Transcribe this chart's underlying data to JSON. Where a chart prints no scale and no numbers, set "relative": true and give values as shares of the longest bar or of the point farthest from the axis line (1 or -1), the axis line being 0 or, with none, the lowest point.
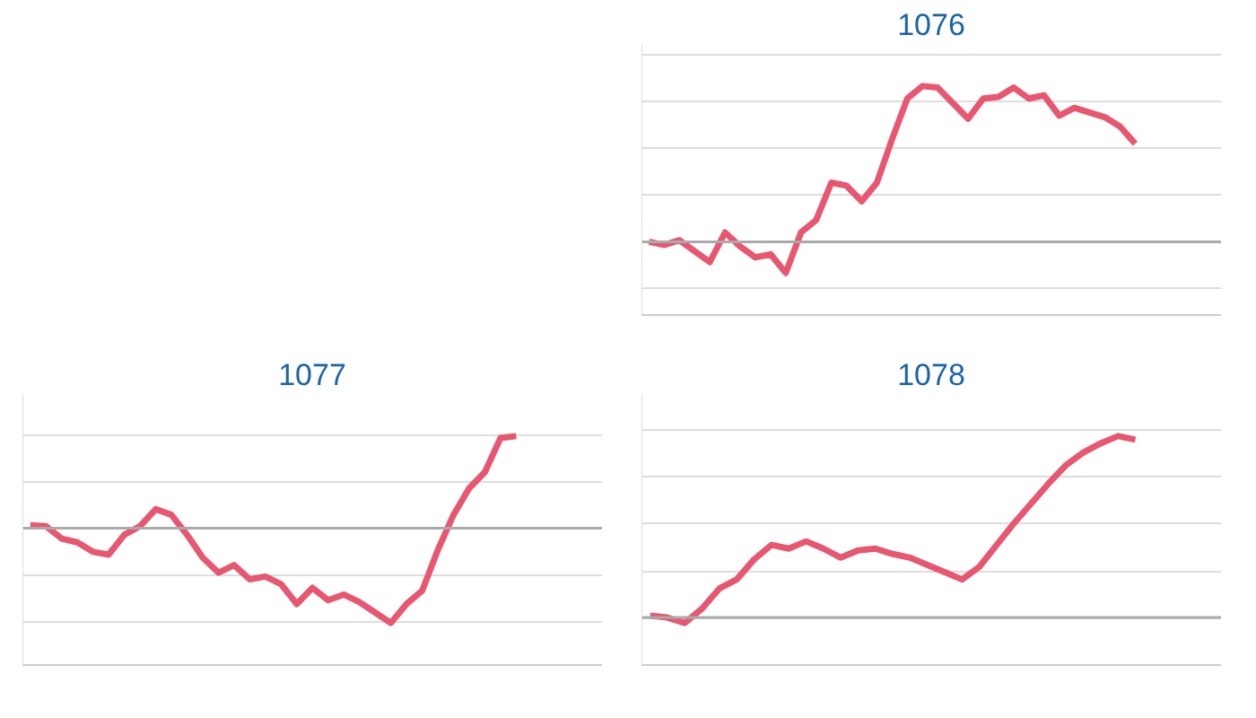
{
  "chart_data": [
    {
      "type": "line",
      "title": "1076",
      "relative": true,
      "grid": "y",
      "color": "#e8566f",
      "categories": [
        null,
        null,
        null,
        null,
        null,
        null,
        null,
        null,
        null,
        null,
        null,
        null,
        null,
        null,
        null,
        null,
        null,
        null,
        null,
        null,
        null,
        null,
        null,
        null,
        null,
        null,
        null,
        null,
        null,
        null,
        null,
        null,
        null
      ],
      "values": [
        0,
        -0.02,
        0.01,
        -0.06,
        -0.13,
        0.06,
        -0.03,
        -0.1,
        -0.08,
        -0.2,
        0.06,
        0.14,
        0.38,
        0.36,
        0.26,
        0.38,
        0.66,
        0.92,
        1.0,
        0.99,
        0.89,
        0.79,
        0.92,
        0.93,
        0.99,
        0.92,
        0.94,
        0.81,
        0.86,
        0.83,
        0.8,
        0.74,
        0.63
      ]
    },
    {
      "type": "line",
      "title": "1077",
      "relative": true,
      "grid": "y",
      "color": "#e8566f",
      "categories": [
        null,
        null,
        null,
        null,
        null,
        null,
        null,
        null,
        null,
        null,
        null,
        null,
        null,
        null,
        null,
        null,
        null,
        null,
        null,
        null,
        null,
        null,
        null,
        null,
        null,
        null,
        null,
        null,
        null,
        null,
        null,
        null
      ],
      "values": [
        0.03,
        0.02,
        -0.11,
        -0.15,
        -0.25,
        -0.28,
        -0.07,
        0.02,
        0.2,
        0.14,
        -0.07,
        -0.31,
        -0.47,
        -0.39,
        -0.54,
        -0.51,
        -0.59,
        -0.8,
        -0.63,
        -0.76,
        -0.7,
        -0.78,
        -0.89,
        -1.0,
        -0.8,
        -0.66,
        -0.23,
        0.14,
        0.42,
        0.59,
        0.95,
        0.97
      ]
    },
    {
      "type": "line",
      "title": "1078",
      "relative": true,
      "grid": "y",
      "color": "#e8566f",
      "categories": [
        null,
        null,
        null,
        null,
        null,
        null,
        null,
        null,
        null,
        null,
        null,
        null,
        null,
        null,
        null,
        null,
        null,
        null,
        null,
        null,
        null,
        null,
        null,
        null,
        null,
        null,
        null,
        null,
        null
      ],
      "values": [
        0.01,
        0,
        -0.03,
        0.05,
        0.16,
        0.21,
        0.32,
        0.4,
        0.38,
        0.42,
        0.38,
        0.33,
        0.37,
        0.38,
        0.35,
        0.33,
        0.29,
        0.25,
        0.21,
        0.28,
        0.4,
        0.52,
        0.63,
        0.74,
        0.84,
        0.91,
        0.96,
        1.0,
        0.98
      ]
    }
  ]
}
